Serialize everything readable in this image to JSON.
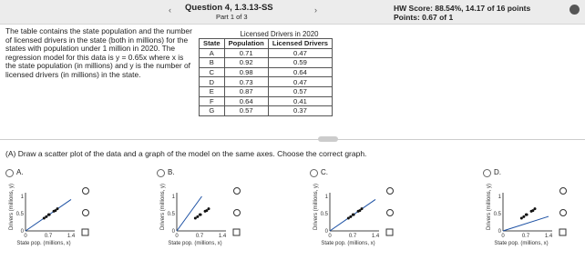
{
  "header": {
    "question": "Question 4, 1.3.13-SS",
    "part": "Part 1 of 3",
    "hw_score": "HW Score: 88.54%, 14.17 of 16 points",
    "points": "Points: 0.67 of 1"
  },
  "problem": {
    "text": "The table contains the state population and the number of licensed drivers in the state (both in millions) for the states with population under 1 million in 2020. The regression model for this data is y = 0.65x where x is the state population (in millions) and y is the number of licensed drivers (in millions) in the state.",
    "table": {
      "title": "Licensed Drivers in 2020",
      "columns": [
        "State",
        "Population",
        "Licensed Drivers"
      ],
      "rows": [
        [
          "A",
          0.71,
          0.47
        ],
        [
          "B",
          0.92,
          0.59
        ],
        [
          "C",
          0.98,
          0.64
        ],
        [
          "D",
          0.73,
          0.47
        ],
        [
          "E",
          0.87,
          0.57
        ],
        [
          "F",
          0.64,
          0.41
        ],
        [
          "G",
          0.57,
          0.37
        ]
      ]
    }
  },
  "question": "(A) Draw a scatter plot of the data and a graph of the model on the same axes. Choose the correct graph.",
  "options": [
    "A.",
    "B.",
    "C.",
    "D."
  ],
  "graph": {
    "x_axis": "State pop. (millions, x)",
    "y_axis": "Drivers (millions, y)",
    "yticks": [
      "1",
      "0.5",
      "0"
    ],
    "xticks": [
      "0",
      "0.7",
      "1.4"
    ]
  }
}
